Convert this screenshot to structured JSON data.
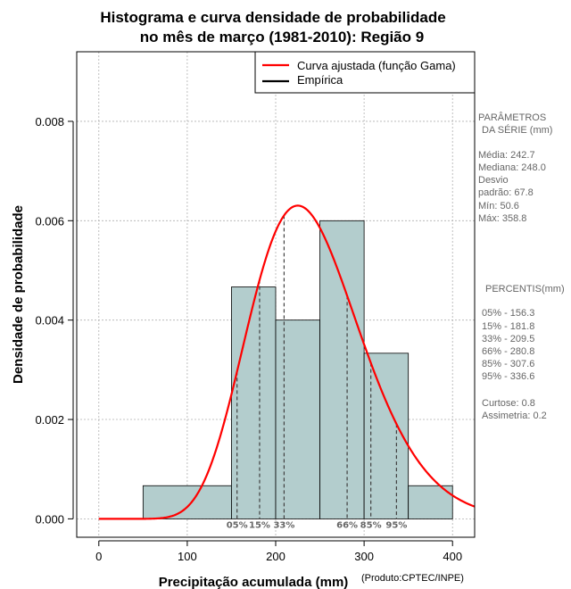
{
  "chart_data": {
    "type": "bar",
    "title_line1": "Histograma e curva densidade de probabilidade",
    "title_line2": "no mês de março (1981-2010): Região 9",
    "xlabel": "Precipitação acumulada (mm)",
    "ylabel": "Densidade de probabilidade",
    "credit": "(Produto:CPTEC/INPE)",
    "xlim": [
      -25,
      425
    ],
    "ylim": [
      -0.00037,
      0.0094
    ],
    "x_ticks": [
      0,
      100,
      200,
      300,
      400
    ],
    "y_ticks": [
      0.0,
      0.002,
      0.004,
      0.006,
      0.008
    ],
    "y_tick_labels": [
      "0.000",
      "0.002",
      "0.004",
      "0.006",
      "0.008"
    ],
    "bins": [
      {
        "from": 50,
        "to": 150,
        "density": 0.000667
      },
      {
        "from": 150,
        "to": 200,
        "density": 0.004667
      },
      {
        "from": 200,
        "to": 250,
        "density": 0.004
      },
      {
        "from": 250,
        "to": 300,
        "density": 0.006
      },
      {
        "from": 300,
        "to": 350,
        "density": 0.003333
      },
      {
        "from": 350,
        "to": 400,
        "density": 0.000667
      }
    ],
    "gamma_fit": {
      "shape": 13.8,
      "rate": 0.0569
    },
    "percentile_lines": [
      {
        "label": "05%",
        "value": 156.3
      },
      {
        "label": "15%",
        "value": 181.8
      },
      {
        "label": "33%",
        "value": 209.5
      },
      {
        "label": "66%",
        "value": 280.8
      },
      {
        "label": "85%",
        "value": 307.6
      },
      {
        "label": "95%",
        "value": 336.6
      }
    ],
    "legend": {
      "position": "top-right",
      "items": [
        {
          "label": "Curva ajustada (função Gama)",
          "color": "#ff0000"
        },
        {
          "label": "Empírica",
          "color": "#000000"
        }
      ]
    },
    "colors": {
      "bar_fill": "#b3cdcd",
      "curve": "#ff0000",
      "grid": "#b0b0b0",
      "percentile": "#404040"
    },
    "grid": true
  },
  "params": {
    "header1": "PARÂMETROS",
    "header2": "DA SÉRIE (mm)",
    "media": "Média:  242.7",
    "mediana": "Mediana:  248.0",
    "desvio1": "Desvio",
    "desvio2": "padrão:  67.8",
    "min": "Mín:  50.6",
    "max": "Máx:  358.8"
  },
  "percentis": {
    "header": "PERCENTIS(mm)",
    "p05": "05% -  156.3",
    "p15": "15% -  181.8",
    "p33": "33% -  209.5",
    "p66": "66% -  280.8",
    "p85": "85% -  307.6",
    "p95": "95% -  336.6",
    "curtose": "Curtose:  0.8",
    "assimetria": "Assimetria:  0.2"
  }
}
